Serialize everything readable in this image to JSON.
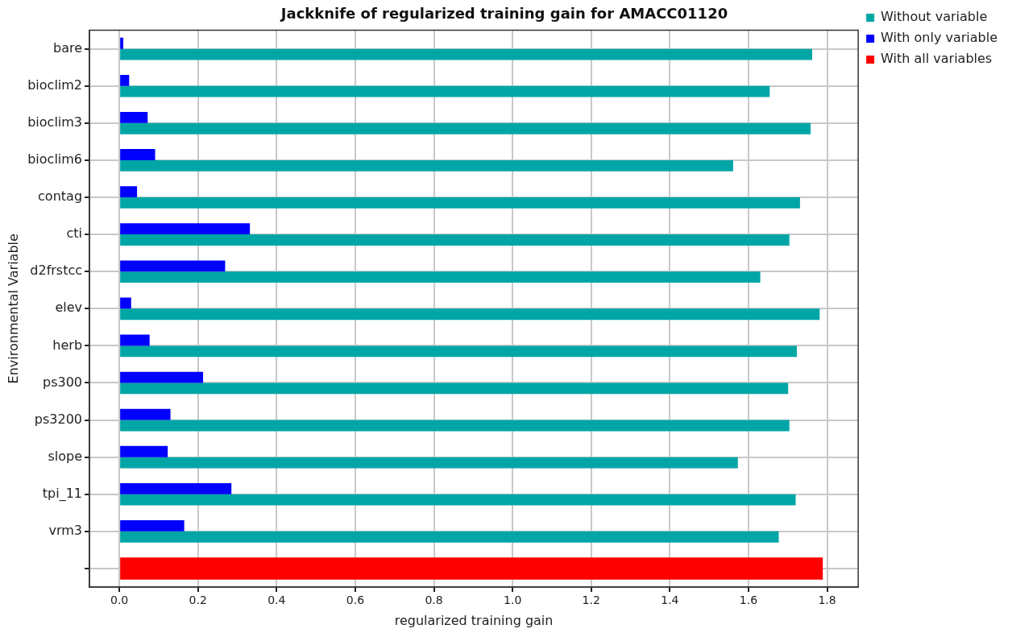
{
  "chart_data": {
    "type": "bar",
    "orientation": "horizontal",
    "title": "Jackknife of regularized training gain for AMACC01120",
    "xlabel": "regularized training gain",
    "ylabel": "Environmental Variable",
    "categories": [
      "bare",
      "bioclim2",
      "bioclim3",
      "bioclim6",
      "contag",
      "cti",
      "d2frstcc",
      "elev",
      "herb",
      "ps300",
      "ps3200",
      "slope",
      "tpi_11",
      "vrm3",
      null
    ],
    "series": [
      {
        "name": "Without variable",
        "color": "#00a6a6",
        "values": [
          1.762,
          1.654,
          1.758,
          1.561,
          1.731,
          1.704,
          1.63,
          1.781,
          1.723,
          1.701,
          1.704,
          1.573,
          1.72,
          1.677,
          null
        ]
      },
      {
        "name": "With only variable",
        "color": "#0000ff",
        "values": [
          0.01,
          0.025,
          0.072,
          0.091,
          0.045,
          0.332,
          0.269,
          0.03,
          0.077,
          0.213,
          0.13,
          0.123,
          0.285,
          0.165,
          null
        ]
      },
      {
        "name": "With all variables",
        "color": "#ff0000",
        "values": [
          null,
          null,
          null,
          null,
          null,
          null,
          null,
          null,
          null,
          null,
          null,
          null,
          null,
          null,
          1.789
        ]
      }
    ],
    "xlim": [
      -0.076,
      1.879
    ],
    "xticks": [
      {
        "value": 0,
        "label": "0.0"
      },
      {
        "value": 0.2,
        "label": "0.2"
      },
      {
        "value": 0.4,
        "label": "0.4"
      },
      {
        "value": 0.6,
        "label": "0.6"
      },
      {
        "value": 0.8,
        "label": "0.8"
      },
      {
        "value": 1,
        "label": "1.0"
      },
      {
        "value": 1.2,
        "label": "1.2"
      },
      {
        "value": 1.4,
        "label": "1.4"
      },
      {
        "value": 1.6,
        "label": "1.6"
      },
      {
        "value": 1.8,
        "label": "1.8"
      }
    ],
    "grid": true,
    "legend": "top right"
  }
}
